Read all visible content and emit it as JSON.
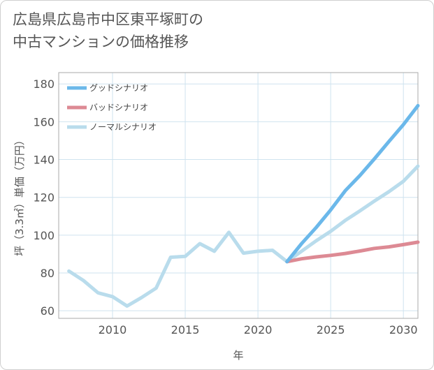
{
  "title": {
    "line1": "広島県広島市中区東平塚町の",
    "line2": "中古マンションの価格推移"
  },
  "chart_data": {
    "type": "line",
    "xlabel": "年",
    "ylabel": "坪（3.3㎡）単価（万円）",
    "xlim": [
      2006.3,
      2031
    ],
    "ylim": [
      56,
      186
    ],
    "xticks": [
      2010,
      2015,
      2020,
      2025,
      2030
    ],
    "yticks": [
      60,
      80,
      100,
      120,
      140,
      160,
      180
    ],
    "grid": true,
    "legend_position": "top-left",
    "series": [
      {
        "name": "グッドシナリオ",
        "color": "#6bb8ea",
        "x": [
          2022,
          2023,
          2024,
          2025,
          2026,
          2027,
          2028,
          2029,
          2030,
          2031
        ],
        "values": [
          86,
          95.5,
          104,
          113.3,
          123.5,
          131.5,
          140.3,
          149.5,
          158.5,
          168.5
        ]
      },
      {
        "name": "バッドシナリオ",
        "color": "#dd8a94",
        "x": [
          2022,
          2023,
          2024,
          2025,
          2026,
          2027,
          2028,
          2029,
          2030,
          2031
        ],
        "values": [
          86,
          87.5,
          88.5,
          89.3,
          90.3,
          91.6,
          93,
          93.8,
          95,
          96.3
        ]
      },
      {
        "name": "ノーマルシナリオ",
        "color": "#b9dcec",
        "x": [
          2007,
          2008,
          2009,
          2010,
          2011,
          2012,
          2013,
          2014,
          2015,
          2016,
          2017,
          2018,
          2019,
          2020,
          2021,
          2022,
          2023,
          2024,
          2025,
          2026,
          2027,
          2028,
          2029,
          2030,
          2031
        ],
        "values": [
          81,
          76,
          69.5,
          67.5,
          62.5,
          67,
          72,
          88.3,
          88.8,
          95.5,
          91.5,
          101.5,
          90.5,
          91.5,
          92,
          86,
          91.5,
          97,
          102,
          107.8,
          112.8,
          118,
          123,
          128.5,
          136.5
        ]
      }
    ]
  }
}
